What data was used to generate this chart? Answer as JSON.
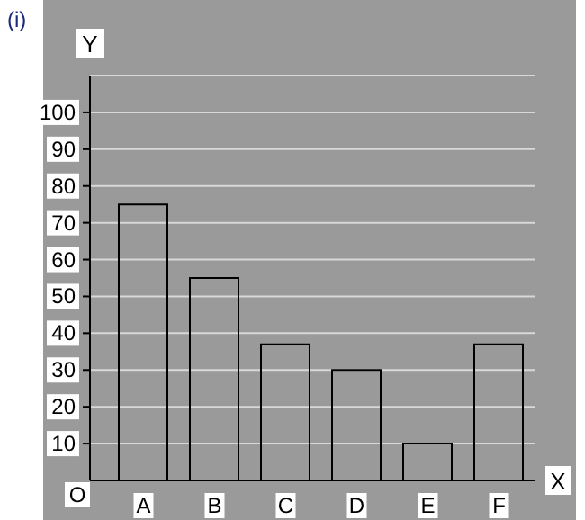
{
  "chart_data": {
    "type": "bar",
    "title": "(i)",
    "xlabel": "X",
    "ylabel": "Y",
    "categories": [
      "A",
      "B",
      "C",
      "D",
      "E",
      "F"
    ],
    "values": [
      75,
      55,
      37,
      30,
      10,
      37
    ],
    "color": "#000000",
    "ylim": [
      0,
      110
    ],
    "yticks": [
      10,
      20,
      30,
      40,
      50,
      60,
      70,
      80,
      90,
      100
    ],
    "annotations": [
      "O"
    ],
    "grid": true
  }
}
